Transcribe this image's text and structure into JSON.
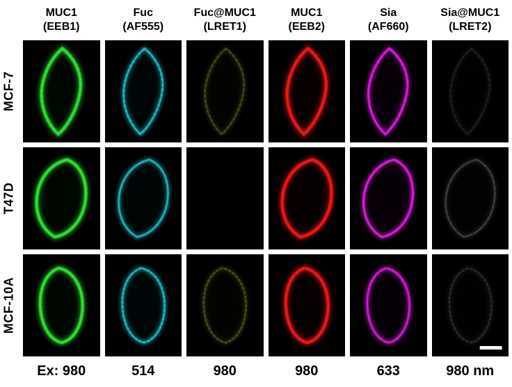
{
  "figure": {
    "page_background": "#ffffff",
    "panel_background": "#000000",
    "columns": [
      {
        "line1": "MUC1",
        "line2": "(EEB1)",
        "ex": "Ex: 980",
        "channel_color": "#2ee032"
      },
      {
        "line1": "Fuc",
        "line2": "(AF555)",
        "ex": "514",
        "channel_color": "#1fd8e0"
      },
      {
        "line1": "Fuc@MUC1",
        "line2": "(LRET1)",
        "ex": "980",
        "channel_color": "#b4b434"
      },
      {
        "line1": "MUC1",
        "line2": "(EEB2)",
        "ex": "980",
        "channel_color": "#f01212"
      },
      {
        "line1": "Sia",
        "line2": "(AF660)",
        "ex": "633",
        "channel_color": "#e61ce6"
      },
      {
        "line1": "Sia@MUC1",
        "line2": "(LRET2)",
        "ex": "980 nm",
        "channel_color": "#cfcfcf"
      }
    ],
    "rows": [
      {
        "label": "MCF-7",
        "shape": "almond"
      },
      {
        "label": "T47D",
        "shape": "leaf"
      },
      {
        "label": "MCF-10A",
        "shape": "oval"
      }
    ],
    "signal": [
      [
        1,
        0.95,
        0.5,
        1,
        1,
        0.2
      ],
      [
        1,
        0.9,
        0,
        1,
        1,
        0.4
      ],
      [
        1,
        0.95,
        0.55,
        1,
        0.95,
        0.28
      ]
    ],
    "scale_bar": {
      "row_index": 2,
      "col_index": 5,
      "color": "#ffffff"
    }
  }
}
